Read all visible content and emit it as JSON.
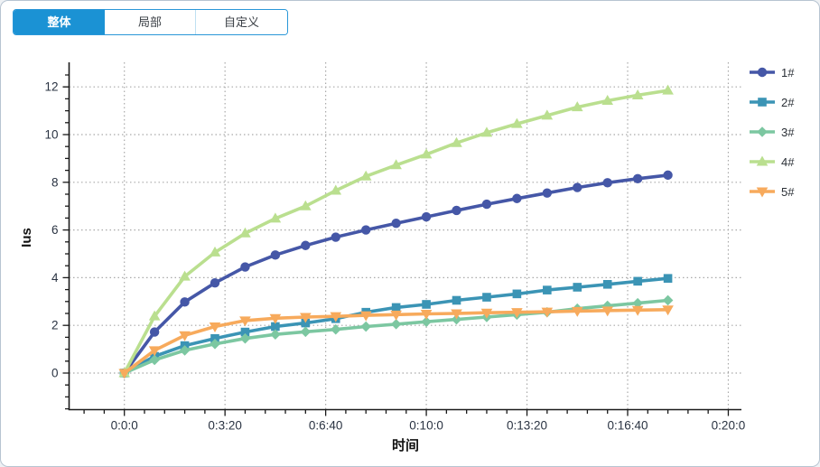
{
  "tabs": [
    {
      "label": "整体",
      "active": true
    },
    {
      "label": "局部",
      "active": false
    },
    {
      "label": "自定义",
      "active": false
    }
  ],
  "legend": {
    "position": "right",
    "items": [
      "1#",
      "2#",
      "3#",
      "4#",
      "5#"
    ]
  },
  "colors": {
    "tab_active_bg": "#1b92d4",
    "tab_border": "#2a97d8",
    "grid": "#a9a9a9",
    "axis": "#1a1a1a",
    "tick_label": "#2a3342"
  },
  "chart_data": {
    "type": "line",
    "title": "",
    "xlabel": "时间",
    "ylabel": "Ius",
    "x_tick_labels": [
      "0:0:0",
      "0:3:20",
      "0:6:40",
      "0:10:0",
      "0:13:20",
      "0:16:40",
      "0:20:0"
    ],
    "x_tick_seconds": [
      0,
      200,
      400,
      600,
      800,
      1000,
      1200
    ],
    "y_ticks": [
      0,
      2,
      4,
      6,
      8,
      10,
      12
    ],
    "ylim": [
      -1.5,
      13
    ],
    "xlim_seconds": [
      -110,
      1228
    ],
    "grid": "dotted",
    "legend_position": "right",
    "x_minutes": [
      0,
      1,
      2,
      3,
      4,
      5,
      6,
      7,
      8,
      9,
      10,
      11,
      12,
      13,
      14,
      15,
      16,
      17,
      18
    ],
    "series": [
      {
        "name": "1#",
        "color": "#4557a7",
        "marker": "circle",
        "values": [
          0,
          1.72,
          2.98,
          3.78,
          4.45,
          4.95,
          5.35,
          5.7,
          6.0,
          6.28,
          6.55,
          6.82,
          7.08,
          7.32,
          7.55,
          7.78,
          7.98,
          8.15,
          8.3
        ]
      },
      {
        "name": "2#",
        "color": "#3b94b5",
        "marker": "square",
        "values": [
          0,
          0.7,
          1.15,
          1.45,
          1.72,
          1.95,
          2.1,
          2.28,
          2.55,
          2.75,
          2.88,
          3.05,
          3.18,
          3.32,
          3.48,
          3.6,
          3.72,
          3.85,
          3.97
        ]
      },
      {
        "name": "3#",
        "color": "#7cc7a1",
        "marker": "diamond",
        "values": [
          0,
          0.55,
          0.95,
          1.22,
          1.45,
          1.62,
          1.73,
          1.83,
          1.95,
          2.05,
          2.15,
          2.25,
          2.35,
          2.45,
          2.55,
          2.7,
          2.82,
          2.93,
          3.05
        ]
      },
      {
        "name": "4#",
        "color": "#badf8f",
        "marker": "triangle-up",
        "values": [
          0,
          2.38,
          4.05,
          5.06,
          5.86,
          6.48,
          7.0,
          7.65,
          8.25,
          8.72,
          9.17,
          9.65,
          10.08,
          10.45,
          10.8,
          11.15,
          11.42,
          11.65,
          11.85
        ]
      },
      {
        "name": "5#",
        "color": "#f7aa5c",
        "marker": "triangle-down",
        "values": [
          0,
          0.95,
          1.58,
          1.95,
          2.2,
          2.3,
          2.35,
          2.38,
          2.42,
          2.45,
          2.48,
          2.5,
          2.53,
          2.55,
          2.57,
          2.6,
          2.62,
          2.64,
          2.66
        ]
      }
    ]
  }
}
